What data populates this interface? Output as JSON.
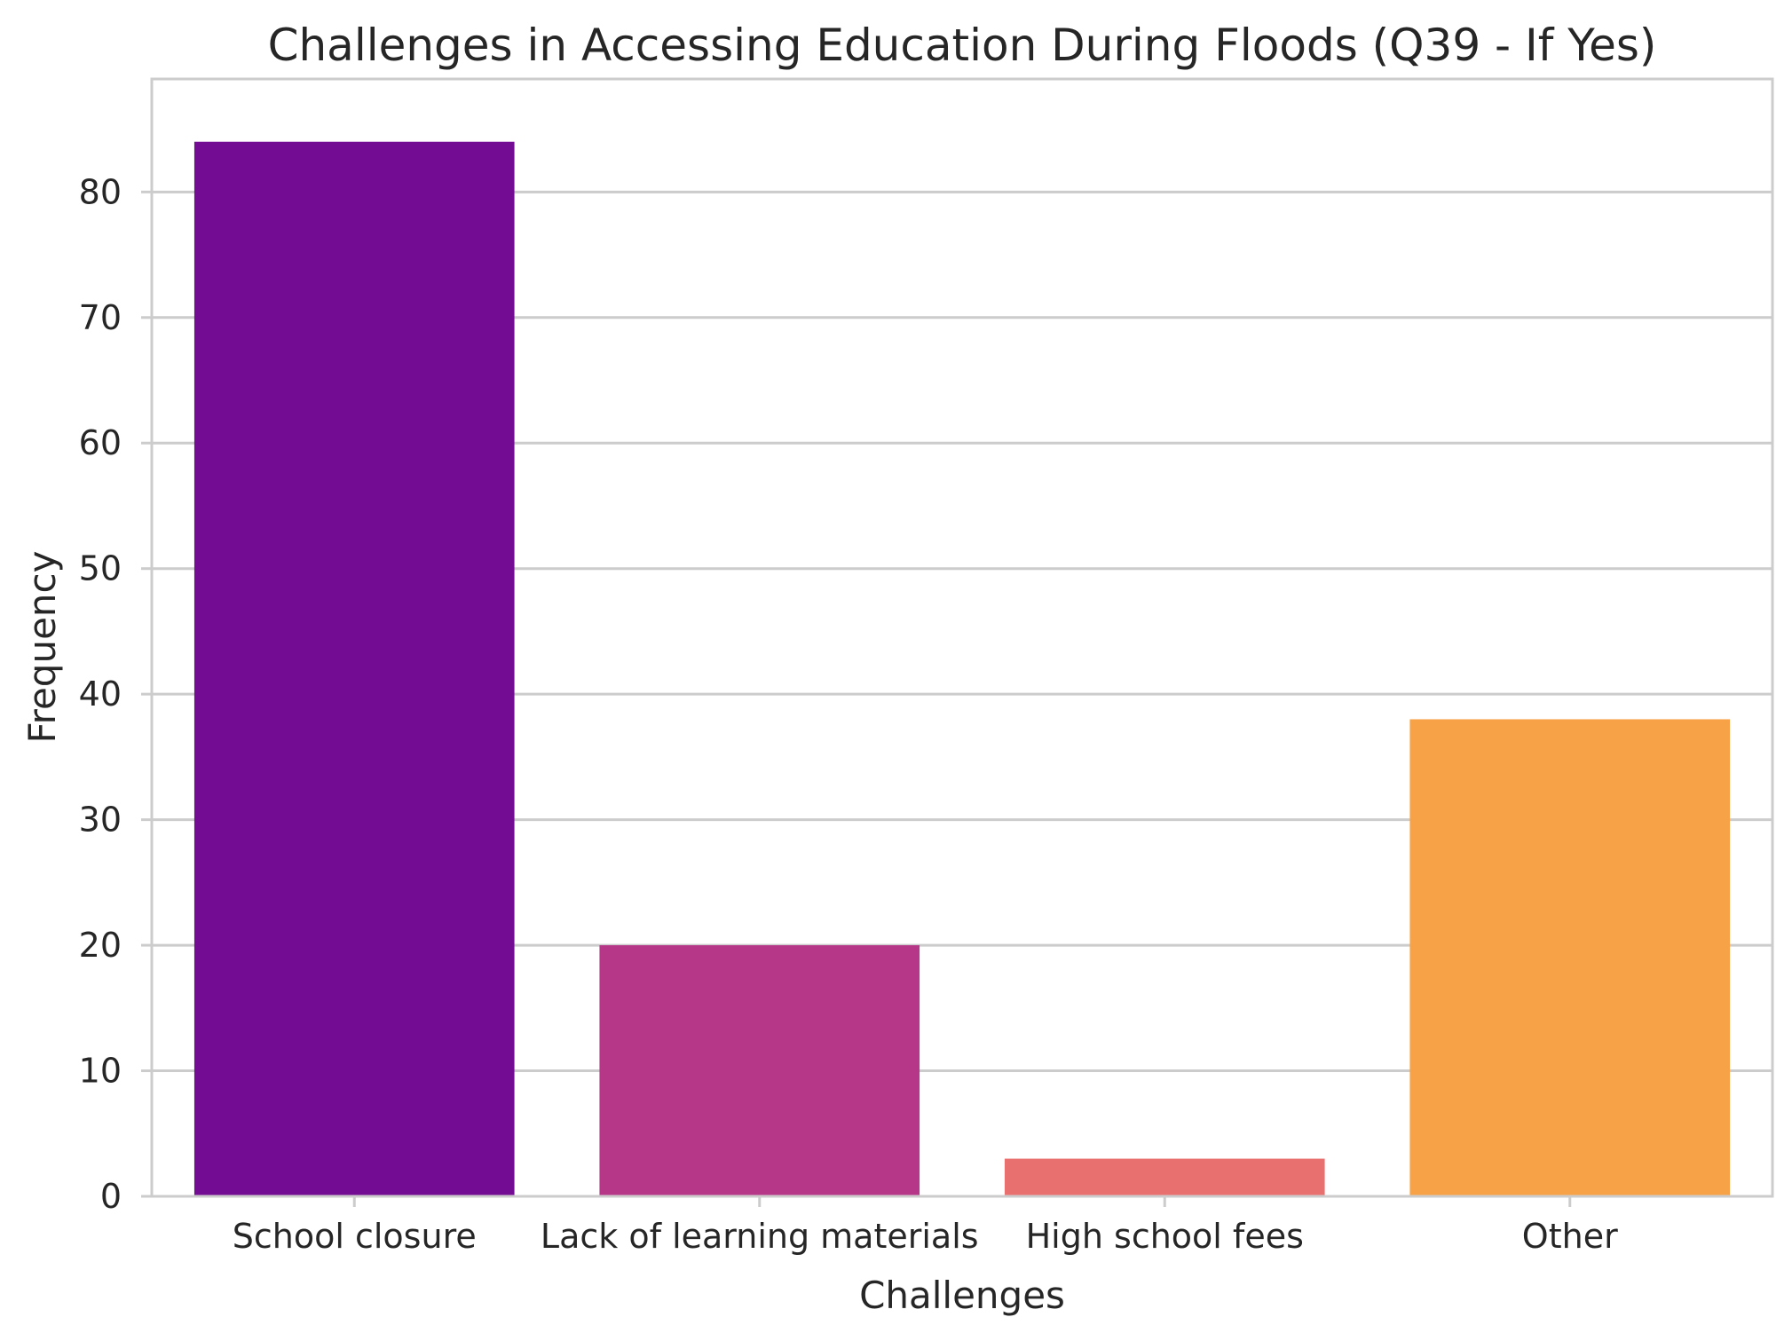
{
  "chart_data": {
    "type": "bar",
    "title": "Challenges in Accessing Education During Floods (Q39 - If Yes)",
    "xlabel": "Challenges",
    "ylabel": "Frequency",
    "categories": [
      "School closure",
      "Lack of learning materials",
      "High school fees",
      "Other"
    ],
    "values": [
      84,
      20,
      3,
      38
    ],
    "colors": [
      "#730c92",
      "#b63688",
      "#e8706f",
      "#f7a247"
    ],
    "ylim": [
      0,
      89
    ],
    "yticks": [
      0,
      10,
      20,
      30,
      40,
      50,
      60,
      70,
      80
    ],
    "grid": "horizontal",
    "legend": "none"
  }
}
